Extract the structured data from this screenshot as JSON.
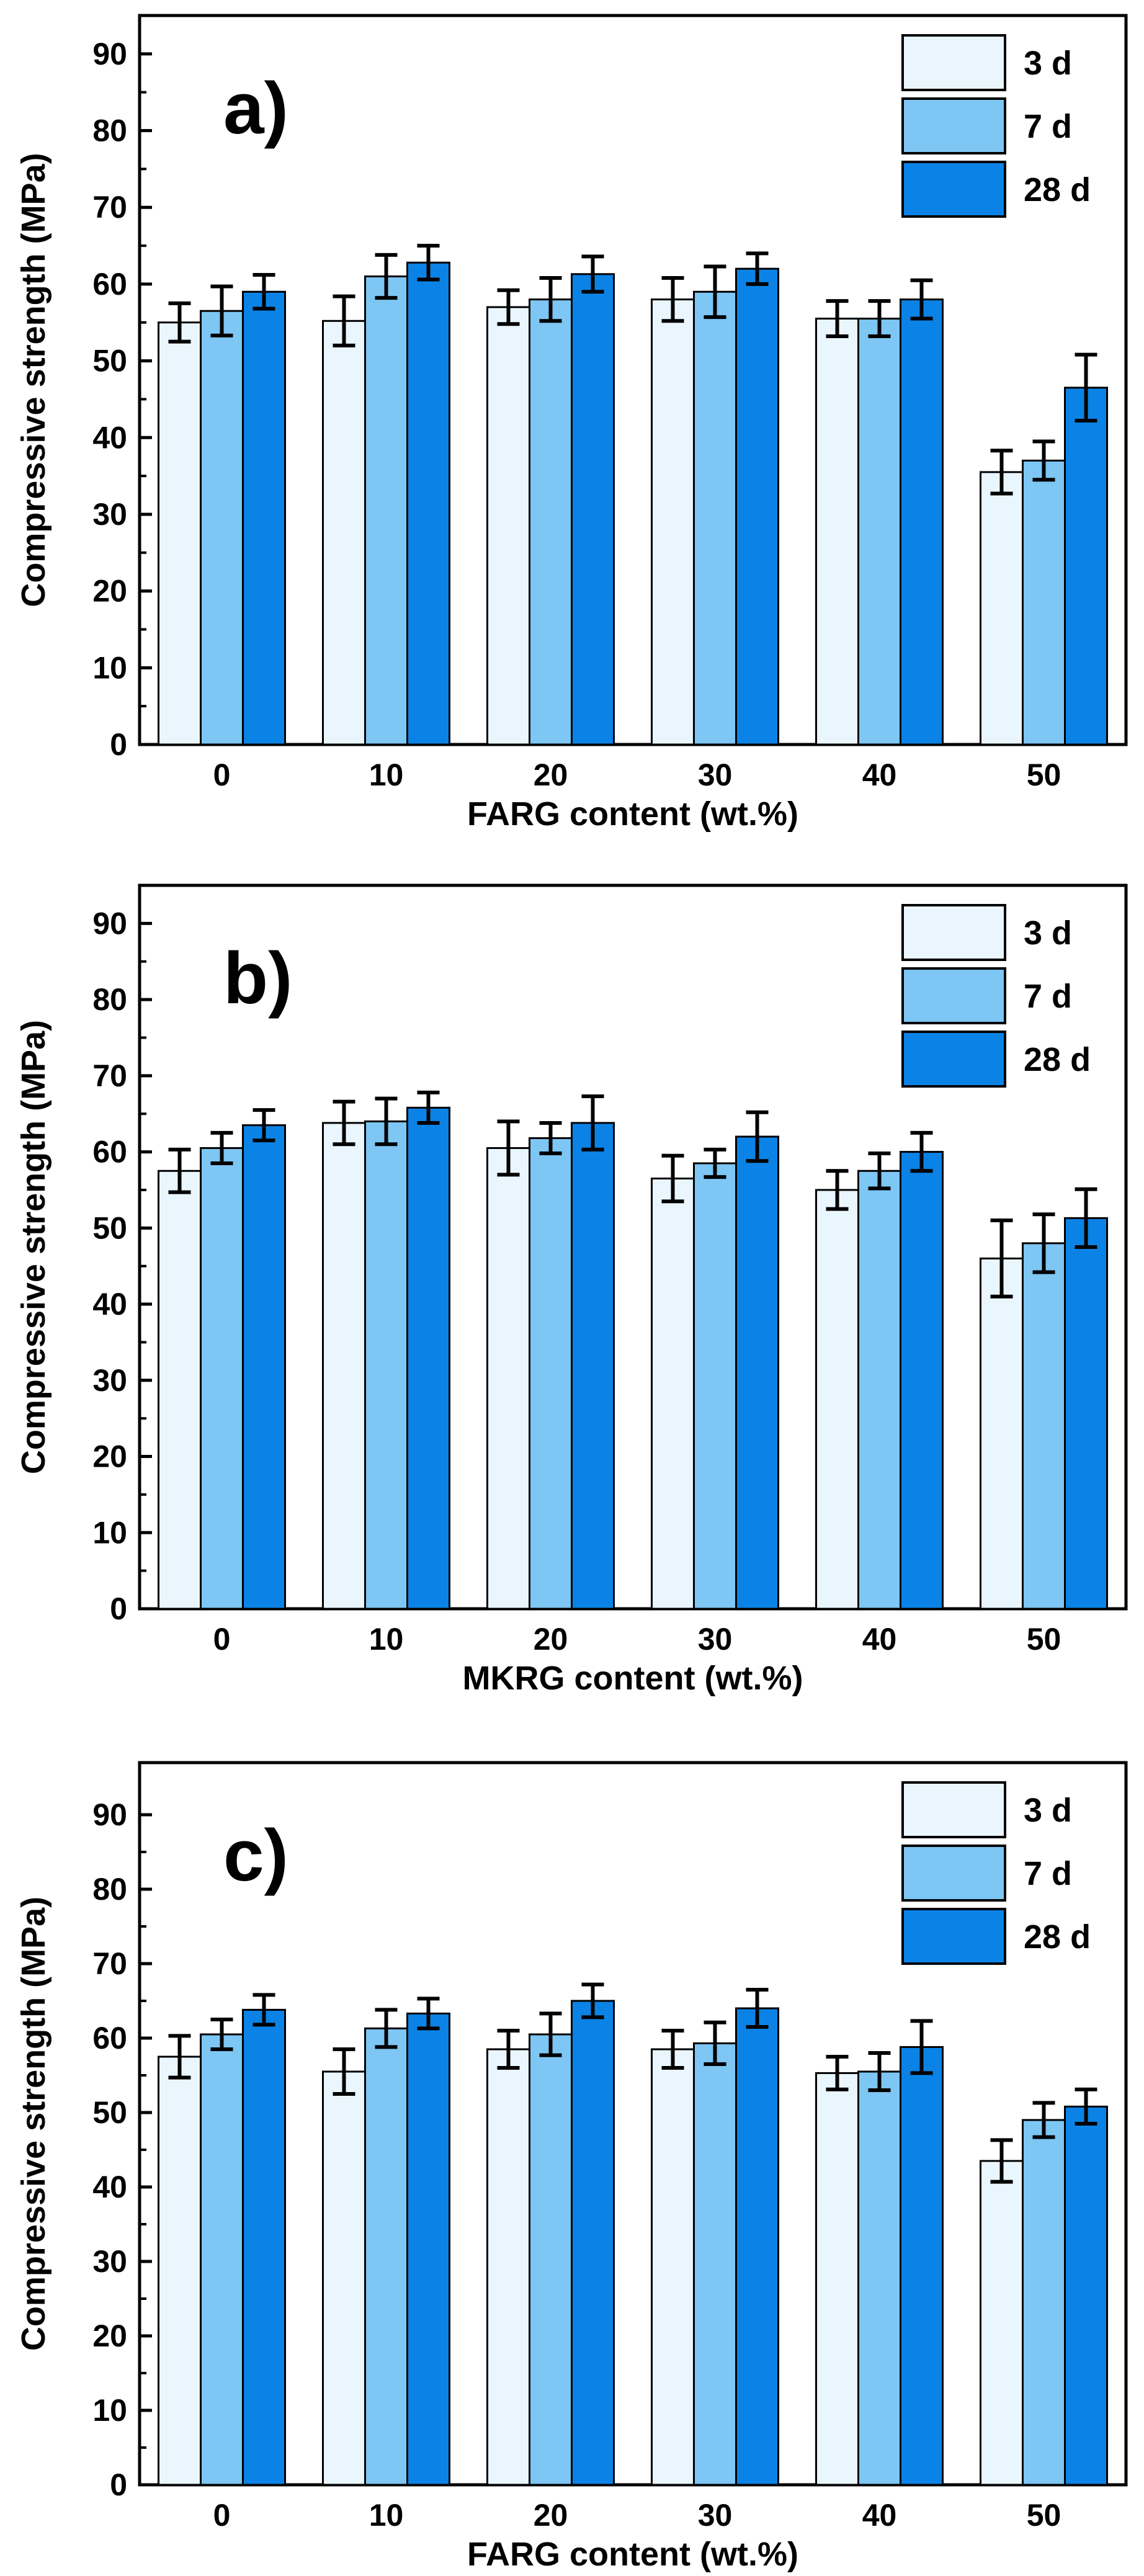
{
  "chart_data": [
    {
      "type": "bar",
      "panel_label": "a)",
      "title": "",
      "xlabel": "FARG content    (wt.%)",
      "ylabel": "Compressive strength (MPa)",
      "categories": [
        "0",
        "10",
        "20",
        "30",
        "40",
        "50"
      ],
      "ylim": [
        0,
        95
      ],
      "yticks": [
        "0",
        "10",
        "20",
        "30",
        "40",
        "50",
        "60",
        "70",
        "80",
        "90"
      ],
      "legend_position": "top-right",
      "series": [
        {
          "name": "3 d",
          "color": "#eaf6fd",
          "values": [
            55,
            55.2,
            57,
            58,
            55.5,
            35.5
          ],
          "errors": [
            2.5,
            3.2,
            2.2,
            2.8,
            2.3,
            2.8
          ]
        },
        {
          "name": "7 d",
          "color": "#7ec6f4",
          "values": [
            56.5,
            61,
            58,
            59,
            55.5,
            37
          ],
          "errors": [
            3.2,
            2.8,
            2.8,
            3.3,
            2.3,
            2.5
          ]
        },
        {
          "name": "28 d",
          "color": "#0b83e6",
          "values": [
            59,
            62.8,
            61.3,
            62,
            58,
            46.5
          ],
          "errors": [
            2.2,
            2.2,
            2.3,
            2.0,
            2.5,
            4.3
          ]
        }
      ]
    },
    {
      "type": "bar",
      "panel_label": "b)",
      "title": "",
      "xlabel": "MKRG content    (wt.%)",
      "ylabel": "Compressive strength (MPa)",
      "categories": [
        "0",
        "10",
        "20",
        "30",
        "40",
        "50"
      ],
      "ylim": [
        0,
        95
      ],
      "yticks": [
        "0",
        "10",
        "20",
        "30",
        "40",
        "50",
        "60",
        "70",
        "80",
        "90"
      ],
      "legend_position": "top-right",
      "series": [
        {
          "name": "3 d",
          "color": "#eaf6fd",
          "values": [
            57.5,
            63.8,
            60.5,
            56.5,
            55,
            46
          ],
          "errors": [
            2.8,
            2.8,
            3.5,
            3.0,
            2.5,
            5.0
          ]
        },
        {
          "name": "7 d",
          "color": "#7ec6f4",
          "values": [
            60.5,
            64,
            61.8,
            58.5,
            57.5,
            48
          ],
          "errors": [
            2.0,
            3.0,
            2.0,
            1.8,
            2.3,
            3.8
          ]
        },
        {
          "name": "28 d",
          "color": "#0b83e6",
          "values": [
            63.5,
            65.8,
            63.8,
            62,
            60,
            51.3
          ],
          "errors": [
            2.0,
            2.0,
            3.5,
            3.2,
            2.5,
            3.8
          ]
        }
      ]
    },
    {
      "type": "bar",
      "panel_label": "c)",
      "title": "",
      "xlabel": "FARG content    (wt.%)",
      "ylabel": "Compressive strength (MPa)",
      "categories": [
        "0",
        "10",
        "20",
        "30",
        "40",
        "50"
      ],
      "ylim": [
        0,
        97
      ],
      "yticks": [
        "0",
        "10",
        "20",
        "30",
        "40",
        "50",
        "60",
        "70",
        "80",
        "90"
      ],
      "legend_position": "top-right",
      "series": [
        {
          "name": "3 d",
          "color": "#eaf6fd",
          "values": [
            57.5,
            55.5,
            58.5,
            58.5,
            55.3,
            43.5
          ],
          "errors": [
            2.8,
            3.0,
            2.5,
            2.5,
            2.2,
            2.8
          ]
        },
        {
          "name": "7 d",
          "color": "#7ec6f4",
          "values": [
            60.5,
            61.3,
            60.5,
            59.3,
            55.5,
            49
          ],
          "errors": [
            2.0,
            2.5,
            2.8,
            2.8,
            2.5,
            2.3
          ]
        },
        {
          "name": "28 d",
          "color": "#0b83e6",
          "values": [
            63.8,
            63.3,
            65,
            64,
            58.8,
            50.8
          ],
          "errors": [
            2.0,
            2.0,
            2.2,
            2.5,
            3.5,
            2.3
          ]
        }
      ]
    }
  ]
}
